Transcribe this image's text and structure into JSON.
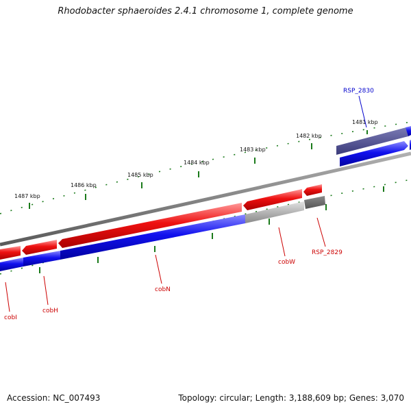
{
  "title": "Rhodobacter sphaeroides 2.4.1 chromosome 1, complete genome",
  "footer": {
    "accession": "Accession: NC_007493",
    "summary": "Topology: circular; Length: 3,188,609 bp; Genes: 3,070"
  },
  "colors": {
    "forward_gene": "#ee1111",
    "reverse_gene": "#1111ee",
    "pseudo_gene": "#aaaaaa",
    "highlight_gene": "#4a4a8c",
    "backbone": "#808080",
    "tick": "#1a7a1a"
  },
  "scale_labels": [
    "1481 kbp",
    "1482 kbp",
    "1483 kbp",
    "1484 kbp",
    "1485 kbp",
    "1486 kbp",
    "1487 kbp"
  ],
  "genes": {
    "cobI": "cobI",
    "cobH": "cobH",
    "cobN": "cobN",
    "cobW": "cobW",
    "rsp2829": "RSP_2829",
    "rsp2830": "RSP_2830"
  }
}
